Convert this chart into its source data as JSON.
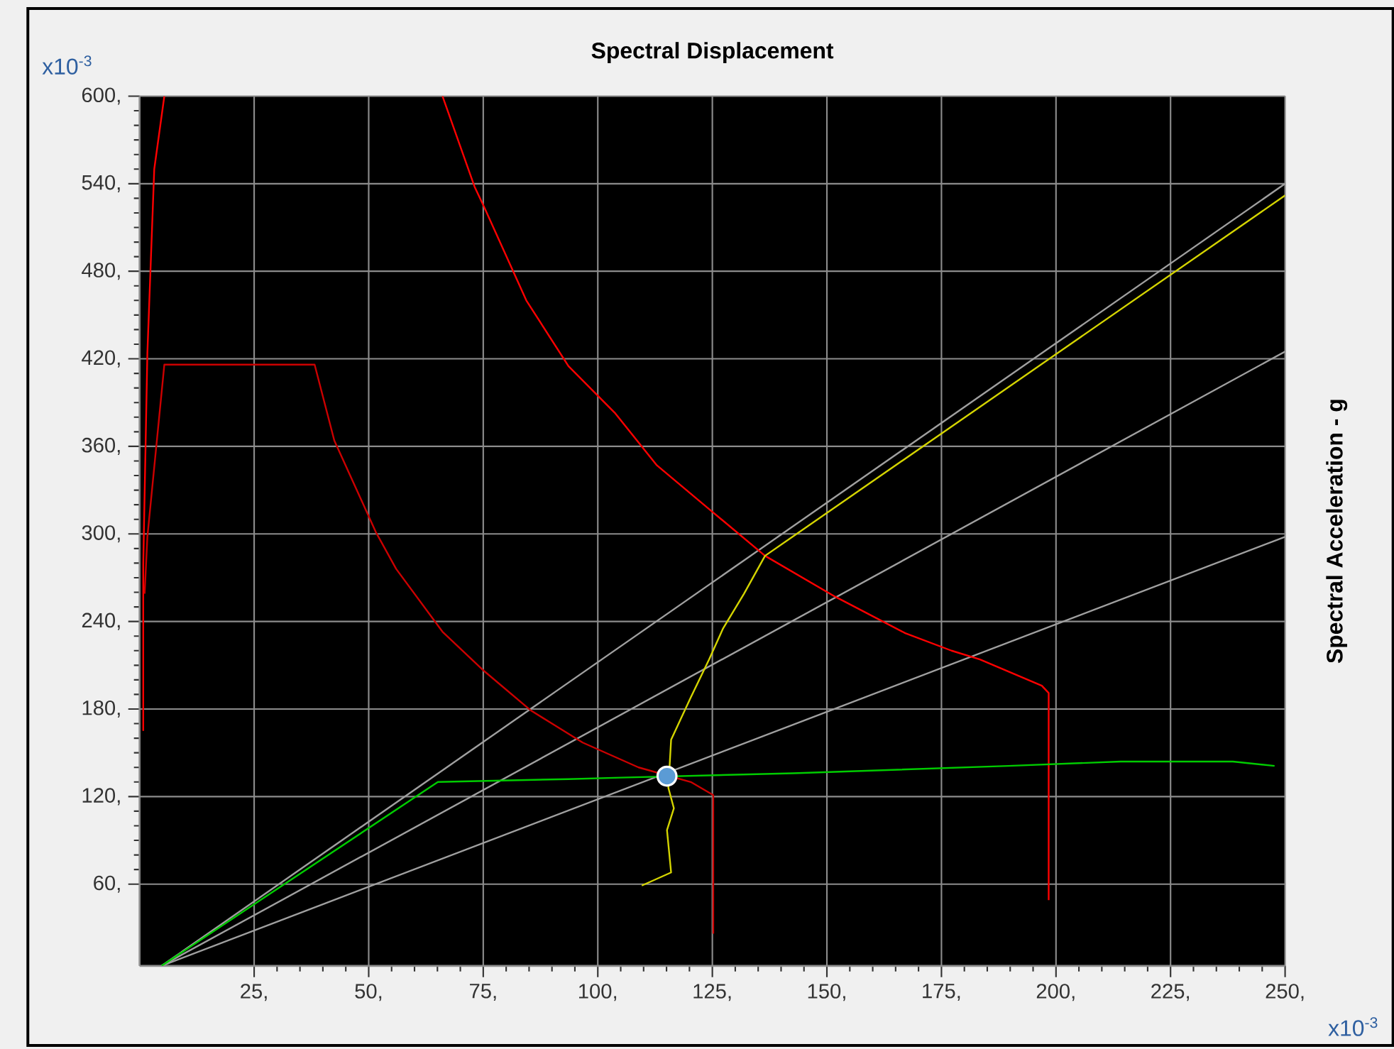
{
  "chart_data": {
    "type": "line",
    "title": "Spectral Displacement",
    "ylabel": "Spectral Acceleration - g",
    "annotations": [
      "x10$^{-3}$",
      "x10$^{-3}$"
    ],
    "xlim": [
      0,
      250
    ],
    "ylim": [
      4,
      600
    ],
    "xticks": [
      {
        "value": 25,
        "label": "25,"
      },
      {
        "value": 50,
        "label": "50,"
      },
      {
        "value": 75,
        "label": "75,"
      },
      {
        "value": 100,
        "label": "100,"
      },
      {
        "value": 125,
        "label": "125,"
      },
      {
        "value": 150,
        "label": "150,"
      },
      {
        "value": 175,
        "label": "175,"
      },
      {
        "value": 200,
        "label": "200,"
      },
      {
        "value": 225,
        "label": "225,"
      },
      {
        "value": 250,
        "label": "250,"
      }
    ],
    "yticks": [
      {
        "value": 60,
        "label": "60,"
      },
      {
        "value": 120,
        "label": "120,"
      },
      {
        "value": 180,
        "label": "180,"
      },
      {
        "value": 240,
        "label": "240,"
      },
      {
        "value": 300,
        "label": "300,"
      },
      {
        "value": 360,
        "label": "360,"
      },
      {
        "value": 420,
        "label": "420,"
      },
      {
        "value": 480,
        "label": "480,"
      },
      {
        "value": 540,
        "label": "540,"
      },
      {
        "value": 600,
        "label": "600,"
      }
    ],
    "grid": true,
    "series": [
      {
        "type": "line",
        "color": "#a0a0a0",
        "x": [
          4.8,
          250
        ],
        "values": [
          4,
          540
        ]
      },
      {
        "type": "line",
        "color": "#a0a0a0",
        "x": [
          4.8,
          250
        ],
        "values": [
          4,
          425
        ]
      },
      {
        "type": "line",
        "color": "#a0a0a0",
        "x": [
          4.8,
          250
        ],
        "values": [
          4,
          298
        ]
      },
      {
        "type": "line",
        "color": "#ff0000",
        "x": [
          0.8,
          0.8,
          1.7,
          3.2,
          5.4
        ],
        "values": [
          165,
          279,
          424,
          550,
          600
        ]
      },
      {
        "type": "line",
        "color": "#cc0000",
        "x": [
          1.1,
          1.7,
          5.4,
          38.2,
          42.5,
          51.6,
          56.0,
          66.1,
          75.2,
          85.4,
          96.7,
          108.9,
          120.3,
          125.2,
          125.2
        ],
        "values": [
          259,
          298,
          416,
          416,
          364,
          301,
          276,
          233,
          206,
          179,
          157,
          140,
          130,
          121,
          26
        ]
      },
      {
        "type": "line",
        "color": "#ff0000",
        "x": [
          66.1,
          73.1,
          75.2,
          84.4,
          93.6,
          103.7,
          112.9,
          124.3,
          136.5,
          151.8,
          167.1,
          177.2,
          183.4,
          196.9,
          198.4,
          198.4
        ],
        "values": [
          600,
          538,
          524,
          460,
          415,
          383,
          347,
          317,
          285,
          257,
          232,
          220,
          214,
          196,
          191,
          49
        ]
      },
      {
        "type": "line",
        "color": "#00cc00",
        "x": [
          4.8,
          65.1,
          93.6,
          105.0,
          142.6,
          189.6,
          214.1,
          238.6,
          247.7
        ],
        "values": [
          4,
          130,
          132,
          133,
          136,
          141,
          144,
          144,
          141
        ]
      },
      {
        "type": "line",
        "color": "#d4d400",
        "x": [
          109.6,
          116.0,
          115.1,
          116.6,
          115.4,
          116.0,
          120.3,
          124.3,
          127.3,
          131.9,
          136.5,
          250
        ],
        "values": [
          59,
          68,
          97,
          112,
          126,
          159,
          188,
          214,
          235,
          259,
          285,
          532
        ]
      },
      {
        "type": "scatter",
        "color": "#5b9bd5",
        "x": [
          115.1
        ],
        "values": [
          134
        ]
      }
    ]
  }
}
